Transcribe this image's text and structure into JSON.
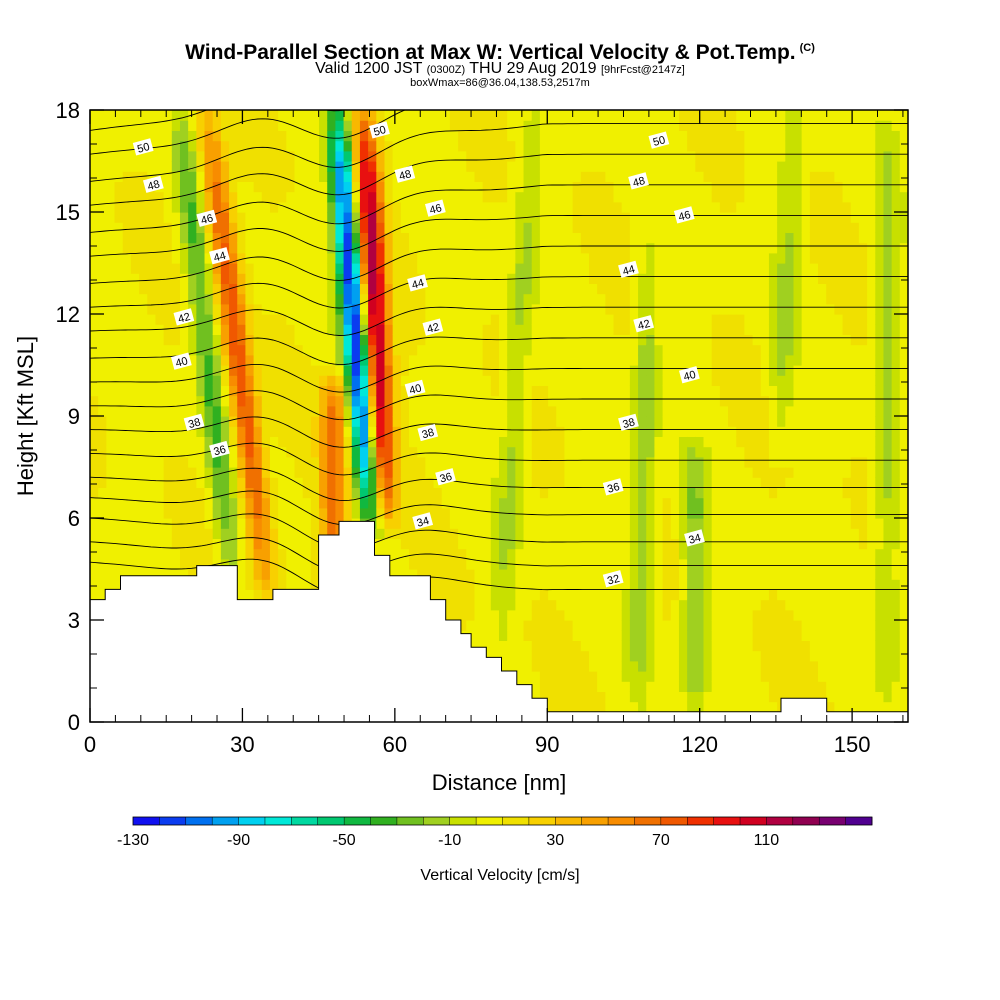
{
  "title": {
    "main": "Wind-Parallel Section at Max W: Vertical Velocity & Pot.Temp.",
    "copyright": "(C)",
    "valid_prefix": "Valid 1200 JST",
    "valid_utc": "(0300Z)",
    "valid_date": "THU 29 Aug 2019",
    "forecast": "[9hrFcst@2147z]",
    "box_info": "boxWmax=86@36.04,138.53,2517m"
  },
  "chart_data": {
    "type": "heatmap",
    "xlabel": "Distance [nm]",
    "ylabel": "Height [Kft MSL]",
    "xlim": [
      0,
      161
    ],
    "ylim": [
      0,
      18
    ],
    "x_ticks": [
      "0",
      "30",
      "60",
      "90",
      "120",
      "150"
    ],
    "y_ticks": [
      "0",
      "3",
      "6",
      "9",
      "12",
      "15",
      "18"
    ],
    "colorbar": {
      "label": "Vertical Velocity [cm/s]",
      "tick_labels": [
        "-130",
        "-90",
        "-50",
        "-10",
        "30",
        "70",
        "110"
      ],
      "levels": [
        -130,
        -120,
        -110,
        -100,
        -90,
        -80,
        -70,
        -60,
        -50,
        -40,
        -30,
        -20,
        -10,
        0,
        10,
        20,
        30,
        40,
        50,
        60,
        70,
        80,
        90,
        100,
        110,
        120,
        130,
        140
      ],
      "colors": [
        "#1010f0",
        "#0a3cf0",
        "#0070f0",
        "#00a0f0",
        "#00d0f0",
        "#00e8d8",
        "#00d8a0",
        "#00c870",
        "#10b840",
        "#30b020",
        "#70c020",
        "#a0d020",
        "#c8e000",
        "#f0f000",
        "#f0e000",
        "#f8d000",
        "#f8b800",
        "#f8a000",
        "#f88c00",
        "#f07000",
        "#f05800",
        "#f03000",
        "#e81010",
        "#d00020",
        "#b00040",
        "#900050",
        "#780070",
        "#500090"
      ]
    },
    "w_features": [
      {
        "kind": "updraft",
        "center_nm": 29,
        "bottom_kft": 3.8,
        "top_kft": 18,
        "slant_nm_per_kft": -0.85,
        "peak_cms": 70
      },
      {
        "kind": "downdraft",
        "center_nm": 23,
        "bottom_kft": 3.8,
        "top_kft": 18,
        "slant_nm_per_kft": -0.75,
        "peak_cms": -40
      },
      {
        "kind": "updraft",
        "center_nm": 48,
        "bottom_kft": 4.5,
        "top_kft": 10,
        "slant_nm_per_kft": 0.0,
        "peak_cms": 60
      },
      {
        "kind": "downdraft",
        "center_nm": 52,
        "bottom_kft": 5.8,
        "top_kft": 18,
        "slant_nm_per_kft": -0.55,
        "peak_cms": -130
      },
      {
        "kind": "updraft",
        "center_nm": 56,
        "bottom_kft": 6,
        "top_kft": 18,
        "slant_nm_per_kft": -0.35,
        "peak_cms": 110
      },
      {
        "kind": "downdraft",
        "center_nm": 84,
        "bottom_kft": 2,
        "top_kft": 18,
        "slant_nm_per_kft": 0.4,
        "peak_cms": -20
      },
      {
        "kind": "downdraft",
        "center_nm": 109,
        "bottom_kft": 0.5,
        "top_kft": 14,
        "slant_nm_per_kft": 0.15,
        "peak_cms": -25
      },
      {
        "kind": "downdraft",
        "center_nm": 119,
        "bottom_kft": 0.5,
        "top_kft": 8,
        "slant_nm_per_kft": 0.0,
        "peak_cms": -30
      },
      {
        "kind": "downdraft",
        "center_nm": 137,
        "bottom_kft": 8,
        "top_kft": 18,
        "slant_nm_per_kft": 0.3,
        "peak_cms": -18
      },
      {
        "kind": "downdraft",
        "center_nm": 157,
        "bottom_kft": 0.3,
        "top_kft": 18,
        "slant_nm_per_kft": 0.0,
        "peak_cms": -22
      }
    ],
    "terrain": {
      "x": [
        0,
        3,
        3,
        6,
        6,
        21,
        21,
        29,
        29,
        36,
        36,
        45,
        45,
        49,
        49,
        56,
        56,
        59,
        59,
        67,
        67,
        70,
        70,
        73,
        73,
        75,
        75,
        78,
        78,
        81,
        81,
        84,
        84,
        87,
        87,
        90,
        90,
        91,
        91,
        136,
        136,
        145,
        145,
        161
      ],
      "y": [
        3.6,
        3.6,
        3.9,
        3.9,
        4.3,
        4.3,
        4.6,
        4.6,
        3.6,
        3.6,
        3.9,
        3.9,
        5.5,
        5.5,
        5.9,
        5.9,
        4.9,
        4.9,
        4.3,
        4.3,
        3.6,
        3.6,
        3.0,
        3.0,
        2.6,
        2.6,
        2.2,
        2.2,
        1.9,
        1.9,
        1.5,
        1.5,
        1.1,
        1.1,
        0.7,
        0.7,
        0.3,
        0.3,
        0.3,
        0.3,
        0.7,
        0.7,
        0.3,
        0.3
      ]
    },
    "theta_contours": {
      "levels": [
        32,
        33,
        34,
        35,
        36,
        37,
        38,
        39,
        40,
        41,
        42,
        43,
        44,
        45,
        46,
        47,
        48,
        49,
        50
      ],
      "west_heights_kft": [
        4.7,
        5.3,
        6.0,
        6.6,
        7.2,
        7.9,
        8.6,
        9.3,
        10.0,
        10.7,
        11.5,
        12.2,
        12.9,
        13.7,
        14.4,
        15.2,
        15.9,
        16.7,
        17.4
      ],
      "east_heights_kft": [
        3.9,
        4.6,
        5.3,
        6.1,
        6.9,
        7.7,
        8.6,
        9.5,
        10.4,
        11.3,
        12.2,
        13.1,
        14.0,
        14.9,
        15.8,
        16.7,
        17.6,
        18.5,
        19.4
      ],
      "labels": [
        {
          "text": "50",
          "x": 10.5,
          "y": 16.9
        },
        {
          "text": "48",
          "x": 12.5,
          "y": 15.8
        },
        {
          "text": "46",
          "x": 23.0,
          "y": 14.8
        },
        {
          "text": "44",
          "x": 25.5,
          "y": 13.7
        },
        {
          "text": "42",
          "x": 18.5,
          "y": 11.9
        },
        {
          "text": "40",
          "x": 18.0,
          "y": 10.6
        },
        {
          "text": "38",
          "x": 20.5,
          "y": 8.8
        },
        {
          "text": "36",
          "x": 25.5,
          "y": 8.0
        },
        {
          "text": "50",
          "x": 57.0,
          "y": 17.4
        },
        {
          "text": "48",
          "x": 62.0,
          "y": 16.1
        },
        {
          "text": "46",
          "x": 68.0,
          "y": 15.1
        },
        {
          "text": "44",
          "x": 64.5,
          "y": 12.9
        },
        {
          "text": "42",
          "x": 67.5,
          "y": 11.6
        },
        {
          "text": "40",
          "x": 64.0,
          "y": 9.8
        },
        {
          "text": "38",
          "x": 66.5,
          "y": 8.5
        },
        {
          "text": "36",
          "x": 70.0,
          "y": 7.2
        },
        {
          "text": "34",
          "x": 65.5,
          "y": 5.9
        },
        {
          "text": "50",
          "x": 112.0,
          "y": 17.1
        },
        {
          "text": "48",
          "x": 108.0,
          "y": 15.9
        },
        {
          "text": "46",
          "x": 117.0,
          "y": 14.9
        },
        {
          "text": "44",
          "x": 106.0,
          "y": 13.3
        },
        {
          "text": "42",
          "x": 109.0,
          "y": 11.7
        },
        {
          "text": "40",
          "x": 118.0,
          "y": 10.2
        },
        {
          "text": "38",
          "x": 106.0,
          "y": 8.8
        },
        {
          "text": "36",
          "x": 103.0,
          "y": 6.9
        },
        {
          "text": "34",
          "x": 119.0,
          "y": 5.4
        },
        {
          "text": "32",
          "x": 103.0,
          "y": 4.2
        }
      ]
    }
  }
}
